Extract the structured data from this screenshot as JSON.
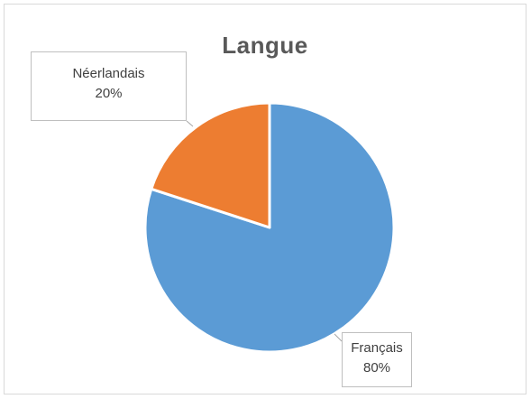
{
  "chart_data": {
    "type": "pie",
    "title": "Langue",
    "slices": [
      {
        "name": "Français",
        "value": 80,
        "label": "80%",
        "color": "#5b9bd5"
      },
      {
        "name": "Néerlandais",
        "value": 20,
        "label": "20%",
        "color": "#ed7d31"
      }
    ],
    "legend": "none",
    "data_labels": "callouts"
  }
}
